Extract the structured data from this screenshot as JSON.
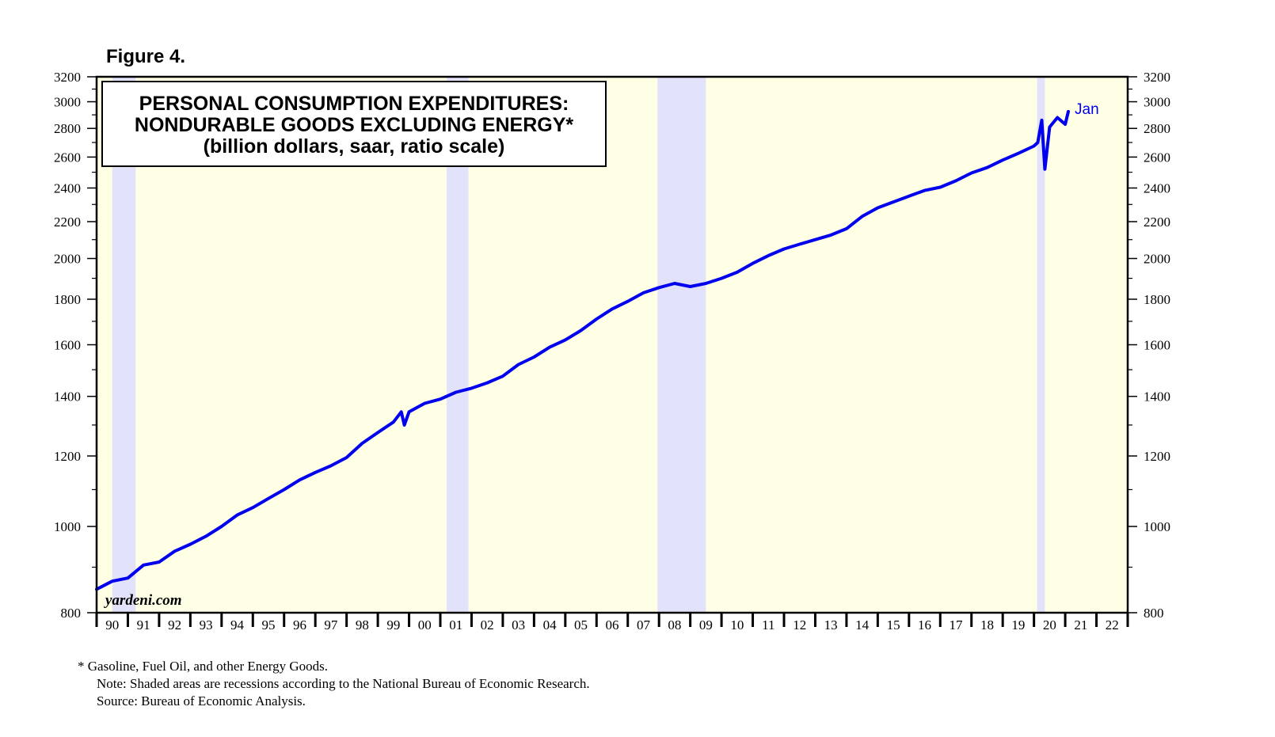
{
  "chart_data": {
    "type": "line",
    "figure_label": "Figure 4.",
    "title_lines": [
      "PERSONAL CONSUMPTION EXPENDITURES:",
      "NONDURABLE GOODS EXCLUDING ENERGY*",
      "(billion dollars, saar, ratio scale)"
    ],
    "y_scale": "log",
    "ylim": [
      800,
      3200
    ],
    "y_ticks": [
      800,
      1000,
      1200,
      1400,
      1600,
      1800,
      2000,
      2200,
      2400,
      2600,
      2800,
      3000,
      3200
    ],
    "y_tick_labels": [
      "800",
      "1000",
      "1200",
      "1400",
      "1600",
      "1800",
      "2000",
      "2200",
      "2400",
      "2600",
      "2800",
      "3000",
      "3200"
    ],
    "xlim": [
      1990,
      2023
    ],
    "x_tick_labels": [
      "90",
      "91",
      "92",
      "93",
      "94",
      "95",
      "96",
      "97",
      "98",
      "99",
      "00",
      "01",
      "02",
      "03",
      "04",
      "05",
      "06",
      "07",
      "08",
      "09",
      "10",
      "11",
      "12",
      "13",
      "14",
      "15",
      "16",
      "17",
      "18",
      "19",
      "20",
      "21",
      "22"
    ],
    "recessions": [
      [
        1990.5,
        1991.25
      ],
      [
        2001.2,
        2001.9
      ],
      [
        2007.95,
        2009.5
      ],
      [
        2020.1,
        2020.35
      ]
    ],
    "series": [
      {
        "name": "Nondurable goods excluding energy",
        "color": "#0000ee",
        "end_label": "Jan",
        "x": [
          1990.0,
          1990.5,
          1991.0,
          1991.5,
          1992.0,
          1992.5,
          1993.0,
          1993.5,
          1994.0,
          1994.5,
          1995.0,
          1995.5,
          1996.0,
          1996.5,
          1997.0,
          1997.5,
          1998.0,
          1998.5,
          1999.0,
          1999.5,
          1999.75,
          1999.85,
          2000.0,
          2000.5,
          2001.0,
          2001.5,
          2002.0,
          2002.5,
          2003.0,
          2003.5,
          2004.0,
          2004.5,
          2005.0,
          2005.5,
          2006.0,
          2006.5,
          2007.0,
          2007.5,
          2008.0,
          2008.5,
          2009.0,
          2009.5,
          2010.0,
          2010.5,
          2011.0,
          2011.5,
          2012.0,
          2012.5,
          2013.0,
          2013.5,
          2014.0,
          2014.5,
          2015.0,
          2015.5,
          2016.0,
          2016.5,
          2017.0,
          2017.5,
          2018.0,
          2018.5,
          2019.0,
          2019.5,
          2020.0,
          2020.12,
          2020.25,
          2020.35,
          2020.5,
          2020.75,
          2021.0,
          2021.1
        ],
        "values": [
          850,
          868,
          875,
          905,
          912,
          938,
          955,
          975,
          1000,
          1030,
          1050,
          1075,
          1100,
          1128,
          1150,
          1170,
          1195,
          1240,
          1275,
          1310,
          1345,
          1300,
          1345,
          1375,
          1390,
          1415,
          1430,
          1450,
          1475,
          1520,
          1550,
          1590,
          1620,
          1660,
          1710,
          1755,
          1790,
          1830,
          1855,
          1875,
          1860,
          1875,
          1900,
          1930,
          1975,
          2015,
          2050,
          2075,
          2100,
          2125,
          2160,
          2230,
          2280,
          2315,
          2350,
          2385,
          2405,
          2445,
          2495,
          2530,
          2580,
          2625,
          2675,
          2700,
          2860,
          2520,
          2810,
          2880,
          2830,
          2925
        ]
      }
    ],
    "footnotes": [
      "*   Gasoline, Fuel Oil, and other Energy Goods.",
      "Note: Shaded areas are recessions according to the National Bureau of Economic Research.",
      "Source: Bureau of Economic Analysis."
    ],
    "credit": "yardeni.com",
    "colors": {
      "plot_background": "#ffffe6",
      "recession_shade": "#e2e2fb",
      "line": "#0000ee",
      "axis": "#000000"
    }
  }
}
